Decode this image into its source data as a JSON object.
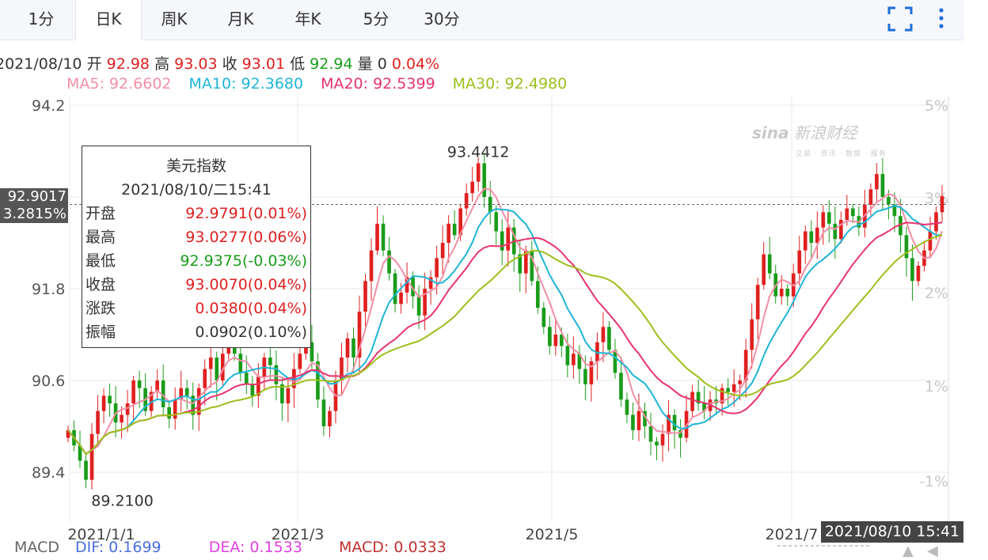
{
  "tabs": [
    {
      "label": "1分",
      "active": false
    },
    {
      "label": "日K",
      "active": true
    },
    {
      "label": "周K",
      "active": false
    },
    {
      "label": "月K",
      "active": false
    },
    {
      "label": "年K",
      "active": false
    },
    {
      "label": "5分",
      "active": false
    },
    {
      "label": "30分",
      "active": false
    }
  ],
  "icons": {
    "fullscreen": "fullscreen-icon",
    "more": "more-vert-icon"
  },
  "info": {
    "date": "2021/08/10",
    "open_label": "开",
    "open": "92.98",
    "high_label": "高",
    "high": "93.03",
    "close_label": "收",
    "close": "93.01",
    "low_label": "低",
    "low": "92.94",
    "vol_label": "量",
    "vol": "0",
    "change": "0.04%"
  },
  "ma": [
    {
      "label": "MA5: 92.6602",
      "color": "#f28fa6"
    },
    {
      "label": "MA10: 92.3680",
      "color": "#1fb5d6"
    },
    {
      "label": "MA20: 92.5399",
      "color": "#e8336e"
    },
    {
      "label": "MA30: 92.4980",
      "color": "#9cbf1c"
    }
  ],
  "tooltip": {
    "title": "美元指数",
    "datetime": "2021/08/10/二15:41",
    "rows": [
      {
        "label": "开盘",
        "value": "92.9791(0.01%)",
        "color": "#e02020"
      },
      {
        "label": "最高",
        "value": "93.0277(0.06%)",
        "color": "#e02020"
      },
      {
        "label": "最低",
        "value": "92.9375(-0.03%)",
        "color": "#1a9c1a"
      },
      {
        "label": "收盘",
        "value": "93.0070(0.04%)",
        "color": "#e02020"
      },
      {
        "label": "涨跌",
        "value": "0.0380(0.04%)",
        "color": "#e02020"
      },
      {
        "label": "振幅",
        "value": "0.0902(0.10%)",
        "color": "#333333"
      }
    ]
  },
  "crosshair": {
    "price": "92.9017",
    "pct": "3.2815%",
    "time": "2021/08/10 15:41"
  },
  "logo": {
    "text": "新浪财经",
    "sub": "交易 · 资讯 · 数据 · 服务"
  },
  "macd": {
    "label": "MACD",
    "dif": "DIF: 0.1699",
    "dif_color": "#4a6ee0",
    "dea": "DEA: 0.1533",
    "dea_color": "#e040e0",
    "macd": "MACD: 0.0333",
    "macd_color": "#c03030"
  },
  "chart_data": {
    "type": "candlestick",
    "yticks": [
      "94.2",
      "93",
      "91.8",
      "90.6",
      "89.4"
    ],
    "ytick_values": [
      94.2,
      93.0,
      91.8,
      90.6,
      89.4
    ],
    "pct_ticks": [
      "5%",
      "3%",
      "2%",
      "1%",
      "-1%"
    ],
    "xticks": [
      "2021/1/1",
      "2021/3",
      "2021/5",
      "2021/7"
    ],
    "annotations": [
      {
        "text": "93.4412"
      },
      {
        "text": "89.2100"
      }
    ],
    "ylim": [
      89.4,
      94.2
    ],
    "up_color": "#e02020",
    "down_color": "#1a9c1a",
    "closes": [
      89.95,
      89.75,
      89.55,
      89.3,
      89.9,
      90.2,
      90.4,
      90.3,
      90.05,
      90.15,
      90.3,
      90.6,
      90.5,
      90.2,
      90.45,
      90.6,
      90.25,
      90.1,
      90.35,
      90.5,
      90.4,
      90.15,
      90.5,
      90.75,
      90.9,
      90.6,
      90.95,
      91.1,
      90.95,
      90.7,
      90.55,
      90.4,
      90.65,
      90.9,
      90.8,
      90.55,
      90.3,
      90.5,
      90.75,
      90.95,
      91.1,
      90.85,
      90.35,
      90.0,
      90.2,
      90.6,
      90.9,
      91.15,
      90.9,
      91.5,
      91.9,
      92.3,
      92.65,
      92.3,
      92.0,
      91.6,
      91.75,
      91.95,
      91.7,
      91.45,
      91.8,
      91.95,
      92.2,
      92.4,
      92.65,
      92.5,
      92.85,
      93.05,
      93.2,
      93.44,
      93.0,
      92.8,
      92.55,
      92.3,
      92.6,
      92.25,
      92.0,
      92.3,
      91.9,
      91.55,
      91.3,
      91.05,
      91.2,
      91.05,
      90.8,
      90.95,
      90.75,
      90.55,
      90.85,
      91.1,
      91.3,
      91.0,
      90.7,
      90.35,
      90.15,
      89.95,
      90.2,
      90.0,
      89.8,
      89.75,
      89.9,
      90.15,
      89.95,
      89.85,
      90.2,
      90.45,
      90.3,
      90.2,
      90.35,
      90.3,
      90.5,
      90.45,
      90.55,
      90.6,
      91.0,
      91.4,
      91.85,
      92.25,
      92.0,
      91.7,
      91.8,
      91.7,
      92.0,
      92.3,
      92.55,
      92.4,
      92.6,
      92.8,
      92.65,
      92.45,
      92.7,
      92.85,
      92.75,
      92.6,
      92.9,
      93.1,
      93.3,
      93.0,
      92.9,
      92.75,
      92.5,
      92.2,
      91.9,
      92.1,
      92.3,
      92.55,
      92.8,
      93.01
    ]
  }
}
